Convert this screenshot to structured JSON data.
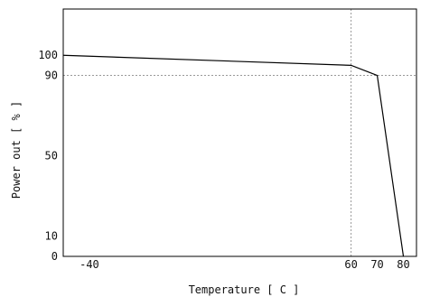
{
  "chart_data": {
    "type": "line",
    "xlabel": "Temperature [ C ]",
    "ylabel": "Power out [ % ]",
    "xlim": [
      -50,
      85
    ],
    "ylim": [
      0,
      123
    ],
    "x_ticks": [
      -40,
      60,
      70,
      80
    ],
    "y_ticks": [
      0,
      10,
      50,
      90,
      100
    ],
    "reference_lines": {
      "x": [
        60
      ],
      "y": [
        90
      ]
    },
    "grid": false,
    "series": [
      {
        "x": [
          -50,
          60,
          70,
          80
        ],
        "y": [
          100,
          95,
          90,
          0
        ]
      }
    ],
    "colors": {
      "line": "#000000",
      "reference": "#999999",
      "axes": "#000000"
    }
  }
}
